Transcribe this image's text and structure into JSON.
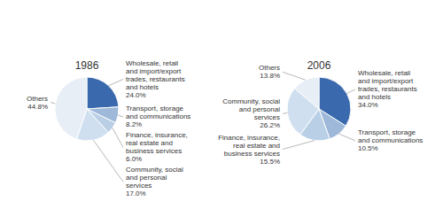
{
  "chart_data": [
    {
      "type": "pie",
      "title": "1986",
      "categories": [
        "Wholesale, retail and import/export trades, restaurants and hotels",
        "Transport, storage and communications",
        "Finance, insurance, real estate and business services",
        "Community, social and personal services",
        "Others"
      ],
      "values": [
        24.0,
        8.2,
        6.0,
        17.0,
        44.8
      ],
      "value_labels": [
        "24.0%",
        "8.2%",
        "6.0%",
        "17.0%",
        "44.8%"
      ],
      "colors": [
        "#3a6aad",
        "#9db8d8",
        "#b8cfe6",
        "#d0dff0",
        "#e8eef6"
      ],
      "data_labels": true
    },
    {
      "type": "pie",
      "title": "2006",
      "categories": [
        "Wholesale, retail and import/export trades, restaurants and hotels",
        "Transport, storage and communications",
        "Finance, insurance, real estate and business services",
        "Community, social and personal services",
        "Others"
      ],
      "values": [
        34.0,
        10.5,
        15.5,
        26.2,
        13.8
      ],
      "value_labels": [
        "34.0%",
        "10.5%",
        "15.5%",
        "26.2%",
        "13.8%"
      ],
      "colors": [
        "#3a6aad",
        "#9db8d8",
        "#b8cfe6",
        "#d0dff0",
        "#e8eef6"
      ],
      "data_labels": true
    }
  ]
}
